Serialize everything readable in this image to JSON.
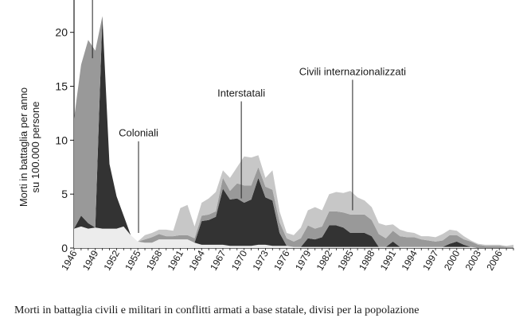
{
  "chart_data": {
    "type": "area",
    "stacked": true,
    "ylabel_line1": "Morti in battaglia per anno",
    "ylabel_line2": "su 100.000 persone",
    "ylim": [
      0,
      23
    ],
    "yticks": [
      0,
      5,
      10,
      15,
      20
    ],
    "xlim": [
      1946,
      2008
    ],
    "xticks": [
      1946,
      1949,
      1952,
      1955,
      1958,
      1961,
      1964,
      1967,
      1970,
      1973,
      1976,
      1979,
      1982,
      1985,
      1988,
      1991,
      1994,
      1997,
      2000,
      2003,
      2006
    ],
    "x": [
      1946,
      1947,
      1948,
      1949,
      1950,
      1951,
      1952,
      1953,
      1954,
      1955,
      1956,
      1957,
      1958,
      1959,
      1960,
      1961,
      1962,
      1963,
      1964,
      1965,
      1966,
      1967,
      1968,
      1969,
      1970,
      1971,
      1972,
      1973,
      1974,
      1975,
      1976,
      1977,
      1978,
      1979,
      1980,
      1981,
      1982,
      1983,
      1984,
      1985,
      1986,
      1987,
      1988,
      1989,
      1990,
      1991,
      1992,
      1993,
      1994,
      1995,
      1996,
      1997,
      1998,
      1999,
      2000,
      2001,
      2002,
      2003,
      2004,
      2005,
      2006,
      2007,
      2008
    ],
    "series": [
      {
        "values": [
          1.8,
          2.0,
          1.8,
          1.9,
          1.8,
          1.8,
          1.8,
          2.0,
          1.2,
          0.6,
          0.5,
          0.5,
          0.8,
          0.8,
          0.8,
          0.8,
          0.8,
          0.5,
          0.3,
          0.3,
          0.3,
          0.3,
          0.2,
          0.2,
          0.2,
          0.2,
          0.3,
          0.3,
          0.2,
          0.2,
          0.2,
          0.1,
          0.1,
          0.1,
          0.1,
          0.1,
          0.1,
          0.1,
          0.1,
          0.1,
          0.1,
          0.1,
          0.1,
          0.1,
          0.1,
          0.1,
          0.1,
          0.1,
          0.1,
          0.1,
          0.1,
          0.1,
          0.1,
          0.1,
          0.1,
          0.1,
          0.1,
          0.0,
          0.0,
          0.0,
          0.0,
          0.0,
          0.0
        ]
      },
      {
        "values": [
          0.0,
          1.0,
          0.5,
          0.0,
          19.7,
          6.0,
          3.0,
          1.0,
          0.0,
          0.0,
          0.0,
          0.0,
          0.0,
          0.0,
          0.0,
          0.0,
          0.0,
          0.0,
          2.2,
          2.3,
          2.6,
          5.2,
          4.3,
          4.4,
          4.0,
          4.3,
          6.2,
          4.4,
          4.2,
          1.2,
          0.0,
          0.0,
          0.0,
          0.8,
          0.7,
          0.9,
          2.0,
          2.0,
          1.8,
          1.3,
          1.3,
          1.3,
          1.0,
          0.0,
          0.0,
          0.5,
          0.0,
          0.0,
          0.0,
          0.0,
          0.0,
          0.0,
          0.0,
          0.3,
          0.5,
          0.2,
          0.0,
          0.0,
          0.0,
          0.0,
          0.0,
          0.0,
          0.0
        ]
      },
      {
        "values": [
          10.2,
          14.0,
          17.0,
          16.4,
          0.0,
          0.0,
          0.0,
          0.0,
          0.0,
          0.0,
          0.3,
          0.5,
          0.5,
          0.3,
          0.3,
          0.4,
          0.4,
          0.4,
          0.5,
          0.5,
          0.5,
          1.0,
          0.8,
          1.4,
          1.6,
          1.3,
          1.0,
          1.0,
          1.0,
          1.0,
          0.7,
          0.5,
          0.8,
          1.2,
          1.0,
          1.0,
          1.3,
          1.3,
          1.4,
          1.7,
          1.7,
          1.7,
          1.5,
          1.2,
          0.8,
          1.0,
          1.0,
          0.9,
          0.9,
          0.7,
          0.6,
          0.5,
          0.6,
          0.8,
          0.6,
          0.5,
          0.5,
          0.3,
          0.2,
          0.2,
          0.2,
          0.1,
          0.1
        ]
      },
      {
        "values": [
          0.0,
          0.0,
          0.0,
          0.0,
          0.0,
          0.0,
          0.0,
          0.0,
          0.0,
          0.0,
          0.4,
          0.4,
          0.4,
          0.6,
          0.5,
          2.5,
          2.8,
          1.1,
          1.2,
          1.5,
          1.8,
          0.7,
          1.2,
          1.5,
          2.7,
          2.6,
          1.1,
          0.8,
          1.8,
          1.0,
          0.5,
          0.6,
          1.0,
          1.4,
          2.0,
          1.5,
          1.6,
          1.8,
          1.8,
          2.2,
          1.6,
          1.3,
          1.2,
          1.0,
          1.2,
          0.6,
          0.6,
          0.5,
          0.4,
          0.3,
          0.4,
          0.4,
          0.6,
          0.5,
          0.4,
          0.3,
          0.1,
          0.1,
          0.1,
          0.1,
          0.1,
          0.1,
          0.2
        ]
      }
    ],
    "colors": [
      "#ececec",
      "#333333",
      "#999999",
      "#c7c7c7"
    ],
    "annotations": [
      {
        "label": "Coloniali",
        "x": 1955.1,
        "y_top": 9.9,
        "y_bottom": 1.4
      },
      {
        "label": "Interstatali",
        "x": 1969.6,
        "y_top": 13.6,
        "y_bottom": 4.6
      },
      {
        "label": "Civili internazionalizzati",
        "x": 1985.3,
        "y_top": 15.6,
        "y_bottom": 3.5
      }
    ],
    "annotation_top_partial": {
      "x": 1948.6,
      "y_top": 23.0,
      "y_bottom": 17.6
    }
  },
  "caption": "Morti in battaglia civili e militari in conflitti armati a base statale, divisi per la popolazione"
}
